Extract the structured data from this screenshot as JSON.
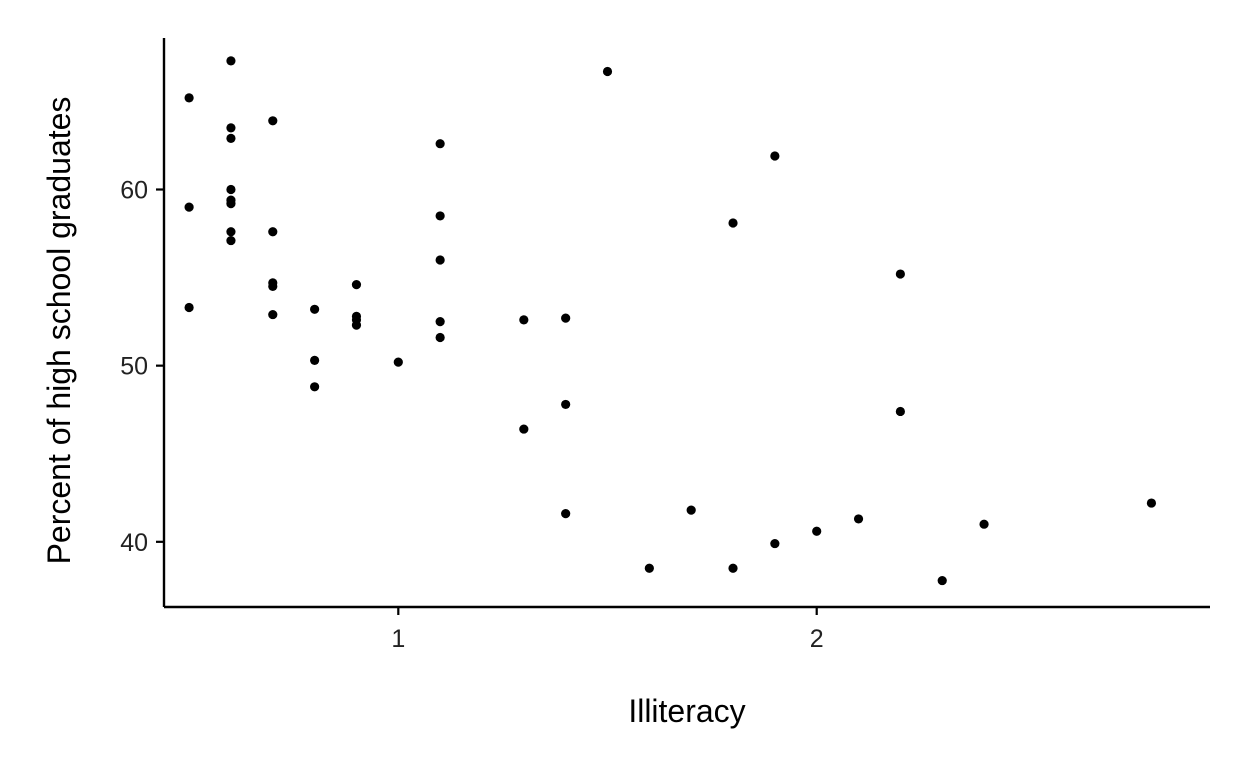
{
  "chart_data": {
    "type": "scatter",
    "title": "",
    "xlabel": "Illiteracy",
    "ylabel": "Percent of high school graduates",
    "xlim": [
      0.44,
      2.94
    ],
    "ylim": [
      36.3,
      68.6
    ],
    "x_ticks": [
      1,
      2
    ],
    "y_ticks": [
      40,
      50,
      60
    ],
    "grid": false,
    "legend": "none",
    "point_color": "#000000",
    "points": [
      {
        "x": 0.5,
        "y": 65.2
      },
      {
        "x": 0.5,
        "y": 59.0
      },
      {
        "x": 0.5,
        "y": 53.3
      },
      {
        "x": 0.6,
        "y": 67.3
      },
      {
        "x": 0.6,
        "y": 63.5
      },
      {
        "x": 0.6,
        "y": 62.9
      },
      {
        "x": 0.6,
        "y": 60.0
      },
      {
        "x": 0.6,
        "y": 59.4
      },
      {
        "x": 0.6,
        "y": 59.2
      },
      {
        "x": 0.6,
        "y": 57.6
      },
      {
        "x": 0.6,
        "y": 57.1
      },
      {
        "x": 0.7,
        "y": 63.9
      },
      {
        "x": 0.7,
        "y": 57.6
      },
      {
        "x": 0.7,
        "y": 54.7
      },
      {
        "x": 0.7,
        "y": 54.5
      },
      {
        "x": 0.7,
        "y": 52.9
      },
      {
        "x": 0.8,
        "y": 53.2
      },
      {
        "x": 0.8,
        "y": 50.3
      },
      {
        "x": 0.8,
        "y": 48.8
      },
      {
        "x": 0.9,
        "y": 54.6
      },
      {
        "x": 0.9,
        "y": 52.8
      },
      {
        "x": 0.9,
        "y": 52.6
      },
      {
        "x": 0.9,
        "y": 52.3
      },
      {
        "x": 1.0,
        "y": 50.2
      },
      {
        "x": 1.1,
        "y": 62.6
      },
      {
        "x": 1.1,
        "y": 58.5
      },
      {
        "x": 1.1,
        "y": 56.0
      },
      {
        "x": 1.1,
        "y": 52.5
      },
      {
        "x": 1.1,
        "y": 51.6
      },
      {
        "x": 1.3,
        "y": 52.6
      },
      {
        "x": 1.3,
        "y": 46.4
      },
      {
        "x": 1.4,
        "y": 52.7
      },
      {
        "x": 1.4,
        "y": 47.8
      },
      {
        "x": 1.4,
        "y": 41.6
      },
      {
        "x": 1.5,
        "y": 66.7
      },
      {
        "x": 1.6,
        "y": 38.5
      },
      {
        "x": 1.7,
        "y": 41.8
      },
      {
        "x": 1.8,
        "y": 58.1
      },
      {
        "x": 1.8,
        "y": 38.5
      },
      {
        "x": 1.9,
        "y": 61.9
      },
      {
        "x": 1.9,
        "y": 39.9
      },
      {
        "x": 2.0,
        "y": 40.6
      },
      {
        "x": 2.1,
        "y": 41.3
      },
      {
        "x": 2.2,
        "y": 55.2
      },
      {
        "x": 2.2,
        "y": 47.4
      },
      {
        "x": 2.3,
        "y": 37.8
      },
      {
        "x": 2.4,
        "y": 41.0
      },
      {
        "x": 2.8,
        "y": 42.2
      }
    ]
  }
}
